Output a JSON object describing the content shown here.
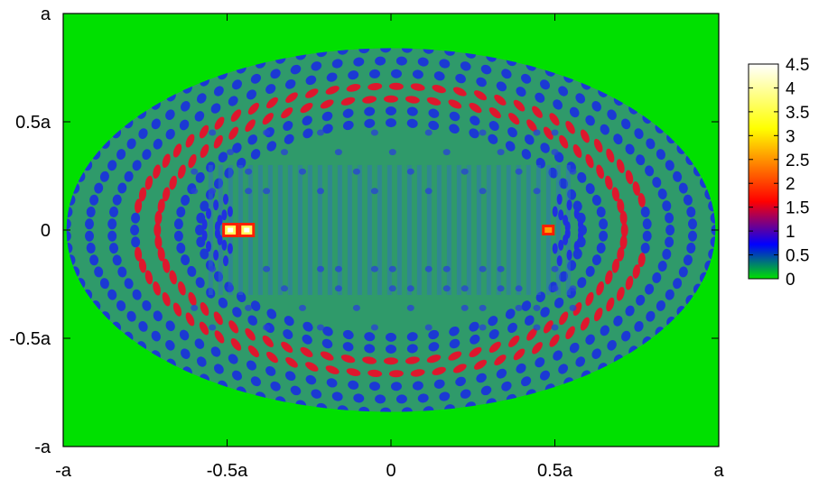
{
  "chart_data": {
    "type": "heatmap",
    "title": "",
    "xlabel": "",
    "ylabel": "",
    "xlim": [
      -1,
      1
    ],
    "ylim": [
      -1,
      1
    ],
    "x_ticks": [
      {
        "value": -1,
        "label": "-a"
      },
      {
        "value": -0.5,
        "label": "-0.5a"
      },
      {
        "value": 0,
        "label": "0"
      },
      {
        "value": 0.5,
        "label": "0.5a"
      },
      {
        "value": 1,
        "label": "a"
      }
    ],
    "y_ticks": [
      {
        "value": -1,
        "label": "-a"
      },
      {
        "value": -0.5,
        "label": "-0.5a"
      },
      {
        "value": 0,
        "label": "0"
      },
      {
        "value": 0.5,
        "label": "0.5a"
      },
      {
        "value": 1,
        "label": "a"
      }
    ],
    "colorbar": {
      "range": [
        0,
        4.5
      ],
      "ticks": [
        {
          "value": 0,
          "label": "0"
        },
        {
          "value": 0.5,
          "label": "0.5"
        },
        {
          "value": 1,
          "label": "1"
        },
        {
          "value": 1.5,
          "label": "1.5"
        },
        {
          "value": 2,
          "label": "2"
        },
        {
          "value": 2.5,
          "label": "2.5"
        },
        {
          "value": 3,
          "label": "3"
        },
        {
          "value": 3.5,
          "label": "3.5"
        },
        {
          "value": 4,
          "label": "4"
        },
        {
          "value": 4.5,
          "label": "4.5"
        }
      ],
      "colors": [
        "#00e000",
        "#0000ff",
        "#ff0000",
        "#ffff00",
        "#ffffff"
      ]
    },
    "background_color": "#00e000",
    "ellipse": {
      "cx": 0,
      "cy": 0,
      "semi_x": 0.99,
      "semi_y": 0.84
    },
    "hotspots": [
      {
        "x": -0.49,
        "y": 0.0,
        "value": 4.5
      },
      {
        "x": -0.44,
        "y": 0.0,
        "value": 4.5
      },
      {
        "x": 0.48,
        "y": 0.0,
        "value": 2.2
      }
    ],
    "grid": false
  }
}
